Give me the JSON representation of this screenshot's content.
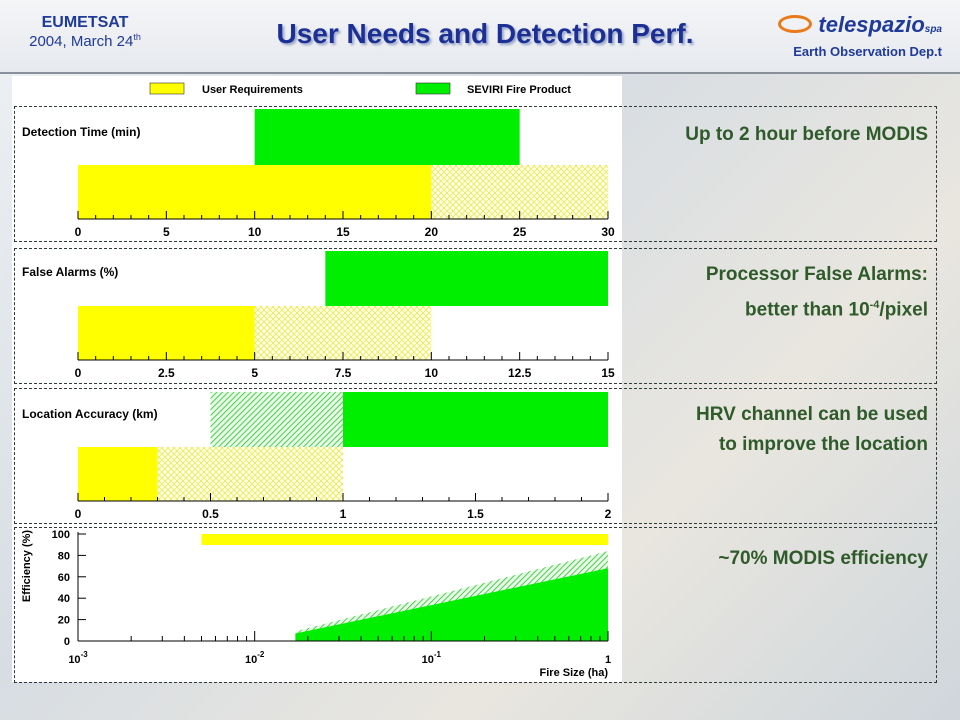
{
  "header": {
    "org_name": "EUMETSAT",
    "date_text": "2004, March 24",
    "date_sup": "th",
    "title": "User Needs and Detection Perf.",
    "logo_text": "telespazio",
    "logo_suffix": "spa",
    "department": "Earth Observation Dep.t"
  },
  "legend": {
    "items": [
      {
        "label": "User Requirements",
        "color": "#ffff00"
      },
      {
        "label": "SEVIRI Fire Product",
        "color": "#00ee00"
      }
    ]
  },
  "notes": {
    "detection_time": "Up to 2 hour before MODIS",
    "false_alarms_line1": "Processor False Alarms:",
    "false_alarms_line2_pre": "better than 10",
    "false_alarms_line2_sup": "-4",
    "false_alarms_line2_post": "/pixel",
    "location_line1": "HRV channel can be used",
    "location_line2": "to improve the location",
    "efficiency": "~70% MODIS efficiency"
  },
  "chart_data": [
    {
      "type": "bar",
      "title": "Detection Time (min)",
      "xlim": [
        0,
        30
      ],
      "x_ticks": [
        "0",
        "5",
        "10",
        "15",
        "20",
        "25",
        "30"
      ],
      "bars": [
        {
          "series": "SEVIRI Fire Product",
          "solid": [
            10,
            25
          ],
          "hatched": null
        },
        {
          "series": "User Requirements",
          "solid": [
            0,
            20
          ],
          "hatched": [
            20,
            30
          ]
        }
      ]
    },
    {
      "type": "bar",
      "title": "False Alarms (%)",
      "xlim": [
        0,
        15
      ],
      "x_ticks": [
        "0",
        "2.5",
        "5",
        "7.5",
        "10",
        "12.5",
        "15"
      ],
      "bars": [
        {
          "series": "SEVIRI Fire Product",
          "solid": [
            7,
            15
          ],
          "hatched": null
        },
        {
          "series": "User Requirements",
          "solid": [
            0,
            5
          ],
          "hatched": [
            5,
            10
          ]
        }
      ]
    },
    {
      "type": "bar",
      "title": "Location Accuracy (km)",
      "xlim": [
        0,
        2
      ],
      "x_ticks": [
        "0",
        "0.5",
        "1",
        "1.5",
        "2"
      ],
      "bars": [
        {
          "series": "SEVIRI Fire Product",
          "solid": [
            1,
            2
          ],
          "hatched": [
            0.5,
            1
          ]
        },
        {
          "series": "User Requirements",
          "solid": [
            0,
            0.3
          ],
          "hatched": [
            0.3,
            1
          ]
        }
      ]
    },
    {
      "type": "area",
      "xlabel": "Fire Size (ha)",
      "ylabel": "Efficiency (%)",
      "xscale": "log",
      "xlim": [
        0.001,
        1
      ],
      "ylim": [
        0,
        100
      ],
      "x_ticks": [
        {
          "base": "10",
          "exp": "-3"
        },
        {
          "base": "10",
          "exp": "-2"
        },
        {
          "base": "10",
          "exp": "-1"
        },
        {
          "base": "1",
          "exp": ""
        }
      ],
      "y_ticks": [
        "0",
        "20",
        "40",
        "60",
        "80",
        "100"
      ],
      "user_requirement": {
        "x": [
          0.005,
          1
        ],
        "y": 100
      },
      "seviri_solid": {
        "x": [
          0.017,
          1
        ],
        "y": [
          7,
          68
        ]
      },
      "seviri_hatched": {
        "x": [
          0.017,
          1
        ],
        "y": [
          9,
          84
        ]
      }
    }
  ]
}
